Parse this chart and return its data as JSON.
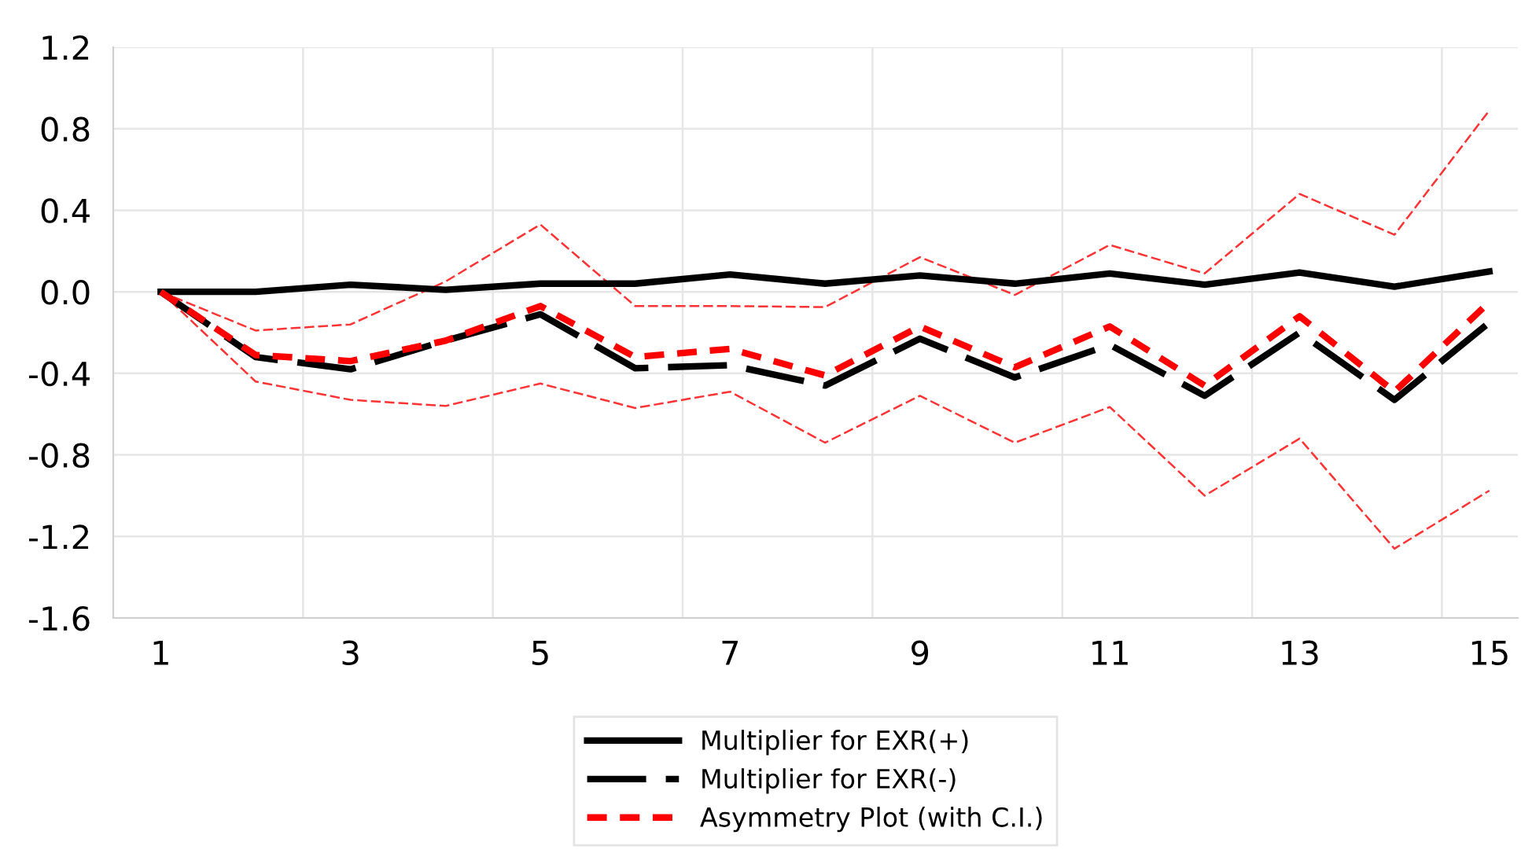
{
  "chart_data": {
    "type": "line",
    "x": [
      1,
      2,
      3,
      4,
      5,
      6,
      7,
      8,
      9,
      10,
      11,
      12,
      13,
      14,
      15
    ],
    "series": [
      {
        "name": "Multiplier for EXR(+)",
        "color": "#000000",
        "line_style": "solid",
        "values": [
          0,
          0,
          0.035,
          0.01,
          0.04,
          0.04,
          0.085,
          0.04,
          0.08,
          0.04,
          0.09,
          0.035,
          0.095,
          0.025,
          0.1
        ]
      },
      {
        "name": "Multiplier for EXR(-)",
        "color": "#000000",
        "line_style": "dashed",
        "values": [
          0,
          -0.32,
          -0.38,
          -0.24,
          -0.11,
          -0.375,
          -0.36,
          -0.46,
          -0.23,
          -0.42,
          -0.26,
          -0.51,
          -0.2,
          -0.53,
          -0.15
        ]
      },
      {
        "name": "Asymmetry Plot (with C.I.)",
        "color": "#ff0000",
        "line_style": "dotted",
        "values": [
          0,
          -0.31,
          -0.34,
          -0.24,
          -0.07,
          -0.32,
          -0.28,
          -0.41,
          -0.17,
          -0.37,
          -0.17,
          -0.46,
          -0.12,
          -0.49,
          -0.05
        ]
      },
      {
        "color": "#ff3333",
        "line_style": "dashed",
        "values": [
          0,
          -0.19,
          -0.16,
          0.05,
          0.33,
          -0.07,
          -0.07,
          -0.075,
          0.17,
          -0.015,
          0.23,
          0.09,
          0.48,
          0.28,
          0.89
        ]
      },
      {
        "color": "#ff3333",
        "line_style": "dashed",
        "values": [
          0,
          -0.44,
          -0.53,
          -0.56,
          -0.45,
          -0.57,
          -0.49,
          -0.74,
          -0.51,
          -0.74,
          -0.565,
          -1.0,
          -0.72,
          -1.26,
          -0.975
        ]
      }
    ],
    "xlim": [
      0.5,
      15.3
    ],
    "xticks": [
      1,
      {
        "value": 2.5,
        "label": null
      },
      3,
      {
        "value": 4.5,
        "label": null
      },
      5,
      {
        "value": 6.5,
        "label": null
      },
      7,
      {
        "value": 8.5,
        "label": null
      },
      9,
      {
        "value": 10.5,
        "label": null
      },
      11,
      {
        "value": 12.5,
        "label": null
      },
      13,
      {
        "value": 14.5,
        "label": null
      },
      15
    ],
    "ylim": [
      -1.6,
      1.2
    ],
    "yticks": [
      -1.6,
      -1.2,
      -0.8,
      -0.4,
      {
        "value": 0,
        "label": "0.0"
      },
      0.4,
      0.8,
      1.2
    ],
    "grid": true,
    "legend": "bottom",
    "marker": "none"
  }
}
